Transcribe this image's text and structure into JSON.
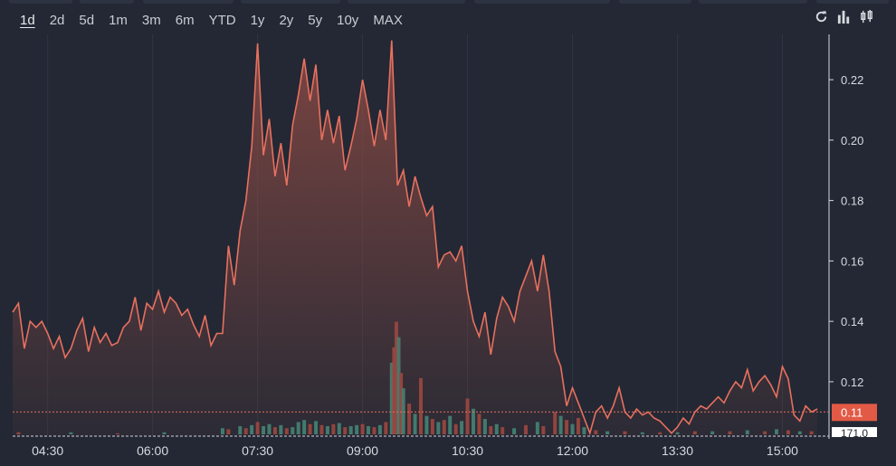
{
  "ranges": [
    "1d",
    "2d",
    "5d",
    "1m",
    "3m",
    "6m",
    "YTD",
    "1y",
    "2y",
    "5y",
    "10y",
    "MAX"
  ],
  "active_range": "1d",
  "toolbar": {
    "refresh_icon": "refresh-icon",
    "bar_icon": "bar-chart-icon",
    "candle_icon": "candlestick-icon"
  },
  "colors": {
    "background": "#232834",
    "line": "#e8705e",
    "area_top": "#8a4a44",
    "volume_up": "#3d8a7a",
    "volume_down": "#a0463f",
    "price_tag": "#e25a46"
  },
  "chart_data": {
    "type": "area",
    "x_ticks": [
      "04:30",
      "06:00",
      "07:30",
      "09:00",
      "10:30",
      "12:00",
      "13:30",
      "15:00"
    ],
    "y_ticks": [
      "0.12",
      "0.14",
      "0.16",
      "0.18",
      "0.20",
      "0.22"
    ],
    "ylim": [
      0.102,
      0.235
    ],
    "xlim": [
      "04:00",
      "15:40"
    ],
    "current_price": "0.11",
    "volume_label": "171.0",
    "price_series": [
      [
        "04:00",
        0.143
      ],
      [
        "04:05",
        0.146
      ],
      [
        "04:10",
        0.131
      ],
      [
        "04:15",
        0.14
      ],
      [
        "04:20",
        0.138
      ],
      [
        "04:25",
        0.14
      ],
      [
        "04:30",
        0.136
      ],
      [
        "04:35",
        0.131
      ],
      [
        "04:40",
        0.135
      ],
      [
        "04:45",
        0.128
      ],
      [
        "04:50",
        0.131
      ],
      [
        "04:55",
        0.137
      ],
      [
        "05:00",
        0.141
      ],
      [
        "05:05",
        0.13
      ],
      [
        "05:10",
        0.138
      ],
      [
        "05:15",
        0.133
      ],
      [
        "05:20",
        0.136
      ],
      [
        "05:25",
        0.132
      ],
      [
        "05:30",
        0.133
      ],
      [
        "05:35",
        0.138
      ],
      [
        "05:40",
        0.14
      ],
      [
        "05:45",
        0.148
      ],
      [
        "05:50",
        0.137
      ],
      [
        "05:55",
        0.146
      ],
      [
        "06:00",
        0.144
      ],
      [
        "06:05",
        0.15
      ],
      [
        "06:10",
        0.143
      ],
      [
        "06:15",
        0.148
      ],
      [
        "06:20",
        0.146
      ],
      [
        "06:25",
        0.142
      ],
      [
        "06:30",
        0.144
      ],
      [
        "06:35",
        0.139
      ],
      [
        "06:40",
        0.135
      ],
      [
        "06:45",
        0.142
      ],
      [
        "06:50",
        0.132
      ],
      [
        "06:55",
        0.136
      ],
      [
        "07:00",
        0.136
      ],
      [
        "07:05",
        0.165
      ],
      [
        "07:10",
        0.152
      ],
      [
        "07:15",
        0.17
      ],
      [
        "07:20",
        0.18
      ],
      [
        "07:25",
        0.198
      ],
      [
        "07:30",
        0.232
      ],
      [
        "07:35",
        0.195
      ],
      [
        "07:40",
        0.207
      ],
      [
        "07:45",
        0.188
      ],
      [
        "07:50",
        0.199
      ],
      [
        "07:55",
        0.185
      ],
      [
        "08:00",
        0.205
      ],
      [
        "08:05",
        0.215
      ],
      [
        "08:10",
        0.227
      ],
      [
        "08:15",
        0.213
      ],
      [
        "08:20",
        0.225
      ],
      [
        "08:25",
        0.2
      ],
      [
        "08:30",
        0.21
      ],
      [
        "08:35",
        0.199
      ],
      [
        "08:40",
        0.208
      ],
      [
        "08:45",
        0.19
      ],
      [
        "08:50",
        0.198
      ],
      [
        "08:55",
        0.207
      ],
      [
        "09:00",
        0.22
      ],
      [
        "09:05",
        0.21
      ],
      [
        "09:10",
        0.198
      ],
      [
        "09:15",
        0.21
      ],
      [
        "09:20",
        0.2
      ],
      [
        "09:25",
        0.233
      ],
      [
        "09:30",
        0.185
      ],
      [
        "09:35",
        0.19
      ],
      [
        "09:40",
        0.178
      ],
      [
        "09:45",
        0.188
      ],
      [
        "09:50",
        0.181
      ],
      [
        "09:55",
        0.175
      ],
      [
        "10:00",
        0.178
      ],
      [
        "10:05",
        0.158
      ],
      [
        "10:10",
        0.162
      ],
      [
        "10:15",
        0.163
      ],
      [
        "10:20",
        0.16
      ],
      [
        "10:25",
        0.165
      ],
      [
        "10:30",
        0.15
      ],
      [
        "10:35",
        0.14
      ],
      [
        "10:40",
        0.135
      ],
      [
        "10:45",
        0.143
      ],
      [
        "10:50",
        0.129
      ],
      [
        "10:55",
        0.141
      ],
      [
        "11:00",
        0.148
      ],
      [
        "11:05",
        0.145
      ],
      [
        "11:10",
        0.14
      ],
      [
        "11:15",
        0.15
      ],
      [
        "11:20",
        0.155
      ],
      [
        "11:25",
        0.16
      ],
      [
        "11:30",
        0.15
      ],
      [
        "11:35",
        0.162
      ],
      [
        "11:40",
        0.15
      ],
      [
        "11:45",
        0.13
      ],
      [
        "11:50",
        0.125
      ],
      [
        "11:55",
        0.112
      ],
      [
        "12:00",
        0.118
      ],
      [
        "12:05",
        0.113
      ],
      [
        "12:10",
        0.108
      ],
      [
        "12:15",
        0.103
      ],
      [
        "12:20",
        0.11
      ],
      [
        "12:25",
        0.112
      ],
      [
        "12:30",
        0.108
      ],
      [
        "12:35",
        0.112
      ],
      [
        "12:40",
        0.118
      ],
      [
        "12:45",
        0.11
      ],
      [
        "12:50",
        0.108
      ],
      [
        "12:55",
        0.111
      ],
      [
        "13:00",
        0.109
      ],
      [
        "13:05",
        0.11
      ],
      [
        "13:10",
        0.108
      ],
      [
        "13:15",
        0.107
      ],
      [
        "13:20",
        0.105
      ],
      [
        "13:25",
        0.103
      ],
      [
        "13:30",
        0.105
      ],
      [
        "13:35",
        0.108
      ],
      [
        "13:40",
        0.106
      ],
      [
        "13:45",
        0.11
      ],
      [
        "13:50",
        0.112
      ],
      [
        "13:55",
        0.111
      ],
      [
        "14:00",
        0.113
      ],
      [
        "14:05",
        0.115
      ],
      [
        "14:10",
        0.113
      ],
      [
        "14:15",
        0.117
      ],
      [
        "14:20",
        0.12
      ],
      [
        "14:25",
        0.118
      ],
      [
        "14:30",
        0.124
      ],
      [
        "14:35",
        0.117
      ],
      [
        "14:40",
        0.12
      ],
      [
        "14:45",
        0.122
      ],
      [
        "14:50",
        0.119
      ],
      [
        "14:55",
        0.115
      ],
      [
        "15:00",
        0.125
      ],
      [
        "15:05",
        0.121
      ],
      [
        "15:10",
        0.109
      ],
      [
        "15:15",
        0.107
      ],
      [
        "15:20",
        0.112
      ],
      [
        "15:25",
        0.11
      ],
      [
        "15:30",
        0.111
      ]
    ],
    "volume_series": [
      {
        "t": "04:05",
        "v": 2,
        "up": false
      },
      {
        "t": "04:50",
        "v": 2,
        "up": true
      },
      {
        "t": "05:30",
        "v": 1,
        "up": false
      },
      {
        "t": "06:10",
        "v": 2,
        "up": true
      },
      {
        "t": "07:00",
        "v": 6,
        "up": true
      },
      {
        "t": "07:05",
        "v": 5,
        "up": false
      },
      {
        "t": "07:15",
        "v": 8,
        "up": true
      },
      {
        "t": "07:20",
        "v": 6,
        "up": false
      },
      {
        "t": "07:25",
        "v": 9,
        "up": true
      },
      {
        "t": "07:30",
        "v": 12,
        "up": false
      },
      {
        "t": "07:35",
        "v": 8,
        "up": true
      },
      {
        "t": "07:40",
        "v": 10,
        "up": true
      },
      {
        "t": "07:45",
        "v": 7,
        "up": false
      },
      {
        "t": "07:50",
        "v": 9,
        "up": true
      },
      {
        "t": "07:55",
        "v": 6,
        "up": false
      },
      {
        "t": "08:00",
        "v": 7,
        "up": true
      },
      {
        "t": "08:05",
        "v": 12,
        "up": true
      },
      {
        "t": "08:10",
        "v": 14,
        "up": true
      },
      {
        "t": "08:15",
        "v": 10,
        "up": false
      },
      {
        "t": "08:20",
        "v": 13,
        "up": true
      },
      {
        "t": "08:25",
        "v": 9,
        "up": false
      },
      {
        "t": "08:30",
        "v": 8,
        "up": true
      },
      {
        "t": "08:35",
        "v": 10,
        "up": false
      },
      {
        "t": "08:40",
        "v": 11,
        "up": true
      },
      {
        "t": "08:45",
        "v": 7,
        "up": false
      },
      {
        "t": "08:50",
        "v": 8,
        "up": true
      },
      {
        "t": "08:55",
        "v": 9,
        "up": true
      },
      {
        "t": "09:00",
        "v": 10,
        "up": false
      },
      {
        "t": "09:05",
        "v": 8,
        "up": true
      },
      {
        "t": "09:10",
        "v": 7,
        "up": false
      },
      {
        "t": "09:15",
        "v": 9,
        "up": true
      },
      {
        "t": "09:20",
        "v": 12,
        "up": false
      },
      {
        "t": "09:25",
        "v": 70,
        "up": true
      },
      {
        "t": "09:27",
        "v": 85,
        "up": false
      },
      {
        "t": "09:29",
        "v": 110,
        "up": false
      },
      {
        "t": "09:31",
        "v": 95,
        "up": true
      },
      {
        "t": "09:33",
        "v": 60,
        "up": false
      },
      {
        "t": "09:35",
        "v": 45,
        "up": true
      },
      {
        "t": "09:40",
        "v": 30,
        "up": false
      },
      {
        "t": "09:45",
        "v": 20,
        "up": true
      },
      {
        "t": "09:50",
        "v": 55,
        "up": false
      },
      {
        "t": "09:55",
        "v": 18,
        "up": true
      },
      {
        "t": "10:00",
        "v": 15,
        "up": false
      },
      {
        "t": "10:05",
        "v": 12,
        "up": true
      },
      {
        "t": "10:10",
        "v": 14,
        "up": false
      },
      {
        "t": "10:15",
        "v": 18,
        "up": true
      },
      {
        "t": "10:20",
        "v": 10,
        "up": false
      },
      {
        "t": "10:25",
        "v": 13,
        "up": true
      },
      {
        "t": "10:30",
        "v": 35,
        "up": false
      },
      {
        "t": "10:35",
        "v": 25,
        "up": true
      },
      {
        "t": "10:40",
        "v": 20,
        "up": false
      },
      {
        "t": "10:45",
        "v": 15,
        "up": true
      },
      {
        "t": "10:50",
        "v": 8,
        "up": false
      },
      {
        "t": "10:55",
        "v": 10,
        "up": true
      },
      {
        "t": "11:00",
        "v": 7,
        "up": false
      },
      {
        "t": "11:10",
        "v": 6,
        "up": true
      },
      {
        "t": "11:20",
        "v": 9,
        "up": false
      },
      {
        "t": "11:30",
        "v": 12,
        "up": true
      },
      {
        "t": "11:35",
        "v": 8,
        "up": false
      },
      {
        "t": "11:45",
        "v": 22,
        "up": false
      },
      {
        "t": "11:50",
        "v": 18,
        "up": true
      },
      {
        "t": "11:55",
        "v": 14,
        "up": false
      },
      {
        "t": "12:00",
        "v": 10,
        "up": true
      },
      {
        "t": "12:05",
        "v": 16,
        "up": false
      },
      {
        "t": "12:10",
        "v": 7,
        "up": true
      },
      {
        "t": "12:20",
        "v": 4,
        "up": false
      },
      {
        "t": "12:30",
        "v": 3,
        "up": true
      },
      {
        "t": "12:45",
        "v": 3,
        "up": false
      },
      {
        "t": "13:00",
        "v": 2,
        "up": true
      },
      {
        "t": "13:15",
        "v": 2,
        "up": false
      },
      {
        "t": "13:30",
        "v": 2,
        "up": true
      },
      {
        "t": "13:45",
        "v": 3,
        "up": false
      },
      {
        "t": "14:00",
        "v": 3,
        "up": true
      },
      {
        "t": "14:15",
        "v": 3,
        "up": false
      },
      {
        "t": "14:30",
        "v": 4,
        "up": true
      },
      {
        "t": "14:45",
        "v": 3,
        "up": false
      },
      {
        "t": "14:55",
        "v": 5,
        "up": true
      },
      {
        "t": "15:05",
        "v": 4,
        "up": false
      },
      {
        "t": "15:15",
        "v": 3,
        "up": true
      },
      {
        "t": "15:25",
        "v": 3,
        "up": false
      }
    ]
  }
}
